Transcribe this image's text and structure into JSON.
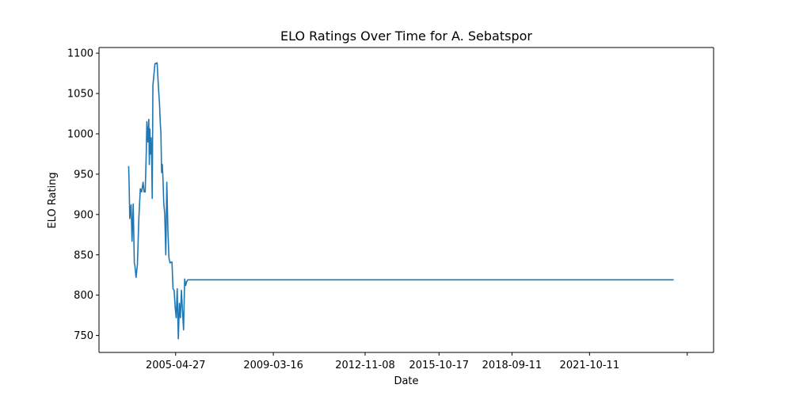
{
  "chart_data": {
    "type": "line",
    "title": "ELO Ratings Over Time for A. Sebatspor",
    "xlabel": "Date",
    "ylabel": "ELO Rating",
    "x_tick_labels": [
      "2005-04-27",
      "2009-03-16",
      "2012-11-08",
      "2015-10-17",
      "2018-09-11",
      "2021-10-11"
    ],
    "y_ticks": [
      750,
      800,
      850,
      900,
      950,
      1000,
      1050,
      1100
    ],
    "xlim": [
      "2002-04-10",
      "2026-09-17"
    ],
    "ylim": [
      729,
      1107
    ],
    "grid": false,
    "color": "#1f77b4",
    "series": [
      {
        "x": [
          "2003-06-15",
          "2003-06-22",
          "2003-07-01",
          "2003-07-20",
          "2003-08-03",
          "2003-08-20",
          "2003-09-05",
          "2003-09-14",
          "2003-09-30",
          "2003-10-20",
          "2003-11-10",
          "2003-12-01",
          "2003-12-20",
          "2004-01-10",
          "2004-01-25",
          "2004-02-10",
          "2004-02-25",
          "2004-03-05",
          "2004-03-20",
          "2004-04-02",
          "2004-04-10",
          "2004-04-18",
          "2004-04-27",
          "2004-05-06",
          "2004-05-14",
          "2004-05-22",
          "2004-06-01",
          "2004-07-01",
          "2004-08-01",
          "2004-08-20",
          "2004-09-05",
          "2004-09-15",
          "2004-09-25",
          "2004-10-05",
          "2004-10-15",
          "2004-10-25",
          "2004-11-05",
          "2004-11-20",
          "2004-12-05",
          "2004-12-20",
          "2005-01-05",
          "2005-01-20",
          "2005-02-05",
          "2005-02-20",
          "2005-03-05",
          "2005-03-20",
          "2005-04-05",
          "2005-04-20",
          "2005-05-05",
          "2005-05-20",
          "2005-06-05",
          "2005-06-20",
          "2005-07-05",
          "2005-07-20",
          "2005-08-05",
          "2005-08-20",
          "2005-09-05",
          "2005-09-20",
          "2005-10-05",
          "2005-10-20",
          "2005-11-05",
          "2005-11-20",
          "2005-12-05",
          "2005-12-20",
          "2025-02-15"
        ],
        "y": [
          960,
          935,
          895,
          912,
          867,
          913,
          840,
          836,
          822,
          838,
          896,
          932,
          928,
          940,
          928,
          928,
          975,
          1015,
          990,
          1018,
          962,
          1006,
          975,
          995,
          968,
          920,
          1060,
          1087,
          1088,
          1058,
          1037,
          1015,
          1002,
          952,
          962,
          945,
          915,
          900,
          850,
          940,
          880,
          846,
          840,
          841,
          841,
          808,
          806,
          785,
          772,
          808,
          746,
          790,
          772,
          806,
          780,
          757,
          820,
          812,
          817,
          819,
          819,
          819,
          819,
          819,
          819
        ]
      }
    ]
  }
}
